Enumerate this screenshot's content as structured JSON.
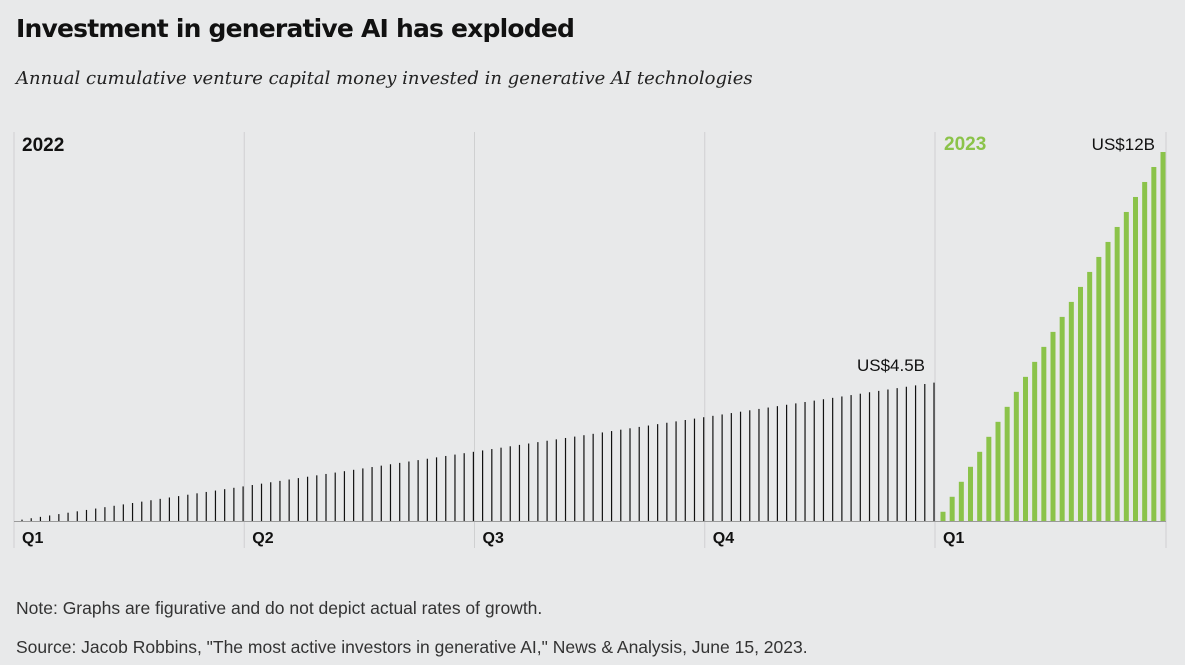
{
  "title": "Investment in generative AI has exploded",
  "subtitle": "Annual cumulative venture capital money invested in generative AI technologies",
  "note": "Note: Graphs are figurative and do not depict actual rates of growth.",
  "source": "Source: Jacob Robbins, \"The most active investors in generative AI,\" News & Analysis, June 15, 2023.",
  "colors": {
    "bars_2022": "#111111",
    "bars_2023": "#8bc34a",
    "gridline": "#cfd0d1",
    "background": "#e8e9ea"
  },
  "chart_data": {
    "type": "bar",
    "grid": true,
    "ylabel": "",
    "panels": [
      {
        "name": "2022",
        "quarters": [
          "Q1",
          "Q2",
          "Q3",
          "Q4"
        ],
        "bar_count": 100,
        "start_value": 0,
        "end_value": 4.5,
        "end_label": "US$4.5B",
        "unit": "US$ billions",
        "color": "#111111"
      },
      {
        "name": "2023",
        "quarters": [
          "Q1"
        ],
        "bar_count": 25,
        "start_value": 0.3,
        "end_value": 12,
        "end_label": "US$12B",
        "unit": "US$ billions",
        "color": "#8bc34a"
      }
    ]
  }
}
